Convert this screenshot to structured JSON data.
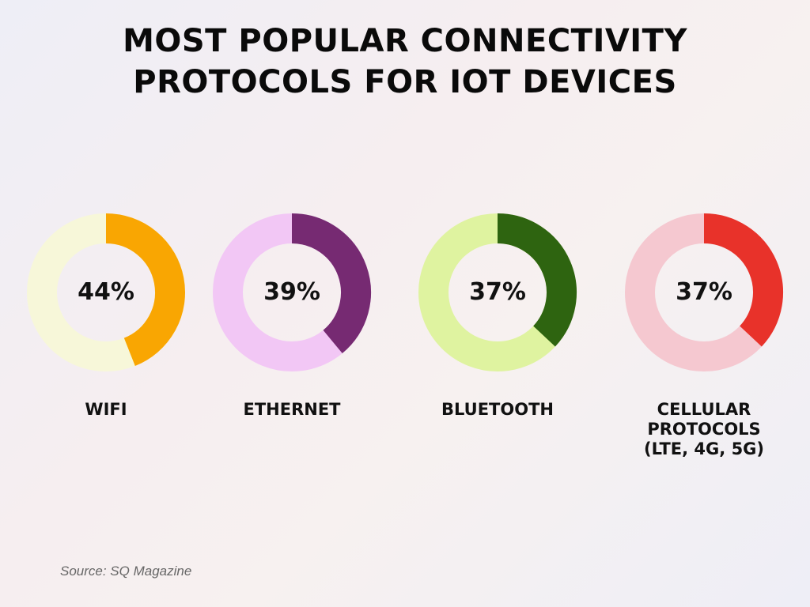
{
  "chart_data": {
    "type": "pie",
    "variant": "donut",
    "title": [
      "MOST POPULAR CONNECTIVITY",
      "PROTOCOLS FOR IOT DEVICES"
    ],
    "items": [
      {
        "label": [
          "WIFI"
        ],
        "value": 44,
        "value_label": "44%",
        "color": "#F9A602",
        "track_color": "#F7F7D9"
      },
      {
        "label": [
          "ETHERNET"
        ],
        "value": 39,
        "value_label": "39%",
        "color": "#762A72",
        "track_color": "#F2C7F5"
      },
      {
        "label": [
          "BLUETOOTH"
        ],
        "value": 37,
        "value_label": "37%",
        "color": "#2E6410",
        "track_color": "#DFF3A0"
      },
      {
        "label": [
          "CELLULAR",
          "PROTOCOLS",
          "(LTE, 4G, 5G)"
        ],
        "value": 37,
        "value_label": "37%",
        "color": "#E8322A",
        "track_color": "#F5C8D0"
      }
    ],
    "source": "Source: SQ Magazine"
  }
}
